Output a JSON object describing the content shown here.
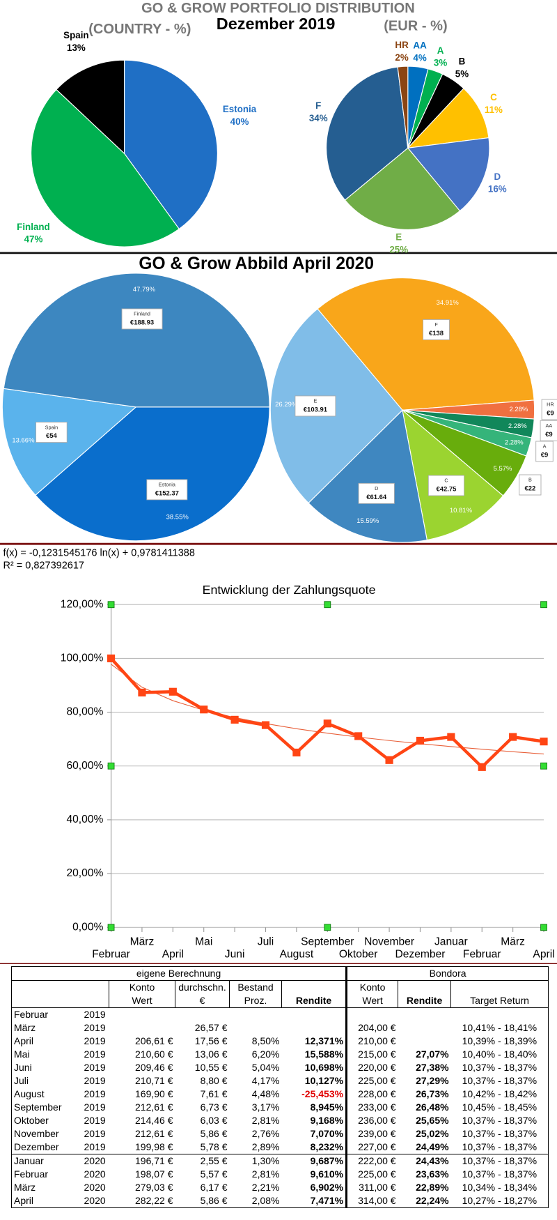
{
  "header": {
    "title": "GO & GROW PORTFOLIO DISTRIBUTION",
    "subtitle": "Dezember 2019",
    "section_title": "GO & Grow Abbild April 2020"
  },
  "chart_data": [
    {
      "type": "pie",
      "title": "(COUNTRY - %)",
      "categories": [
        "Estonia",
        "Finland",
        "Spain"
      ],
      "values": [
        40,
        47,
        13
      ],
      "value_labels": [
        "40%",
        "47%",
        "13%"
      ],
      "colors": [
        "#1f6fc5",
        "#00b050",
        "#000000"
      ]
    },
    {
      "type": "pie",
      "title": "(EUR - %)",
      "categories": [
        "AA",
        "A",
        "B",
        "C",
        "D",
        "E",
        "F",
        "HR"
      ],
      "values": [
        4,
        3,
        5,
        11,
        16,
        25,
        34,
        2
      ],
      "value_labels": [
        "4%",
        "3%",
        "5%",
        "11%",
        "16%",
        "25%",
        "34%",
        "2%"
      ],
      "colors": [
        "#0070c0",
        "#00b050",
        "#000000",
        "#ffc000",
        "#4472c4",
        "#70ad47",
        "#255e91",
        "#8b4513"
      ]
    },
    {
      "type": "pie",
      "categories": [
        "Estonia",
        "Spain",
        "Finland"
      ],
      "values": [
        38.55,
        13.66,
        47.79
      ],
      "value_labels": [
        "38.55%",
        "13.66%",
        "47.79%"
      ],
      "amounts": [
        152.37,
        54,
        188.93
      ],
      "amount_labels": [
        "€152.37",
        "€54",
        "€188.93"
      ],
      "colors": [
        "#0a6ecc",
        "#5ab3ec",
        "#3d87c0"
      ]
    },
    {
      "type": "pie",
      "categories": [
        "F",
        "HR",
        "AA",
        "A",
        "B",
        "C",
        "D",
        "E"
      ],
      "values": [
        34.91,
        2.28,
        2.28,
        2.28,
        5.57,
        10.81,
        15.59,
        26.29
      ],
      "value_labels": [
        "34.91%",
        "2.28%",
        "2.28%",
        "2.28%",
        "5.57%",
        "10.81%",
        "15.59%",
        "26.29%"
      ],
      "amounts": [
        138,
        9,
        9,
        9,
        22,
        42.75,
        61.64,
        103.91
      ],
      "amount_labels": [
        "€138",
        "€9",
        "€9",
        "€9",
        "€22",
        "€42.75",
        "€61.64",
        "€103.91"
      ],
      "colors": [
        "#f9a61a",
        "#f07040",
        "#11875a",
        "#35b47a",
        "#68ad0c",
        "#9bd430",
        "#3f87c0",
        "#80bde8"
      ]
    },
    {
      "type": "line",
      "title": "Entwicklung der Zahlungsquote",
      "annotations": [
        "f(x) = -0,1231545176 ln(x) + 0,9781411388",
        "R² = 0,827392617"
      ],
      "categories": [
        "Februar",
        "März",
        "April",
        "Mai",
        "Juni",
        "Juli",
        "August",
        "September",
        "Oktober",
        "November",
        "Dezember",
        "Januar",
        "Februar",
        "März",
        "April"
      ],
      "values": [
        100,
        87.3,
        87.6,
        81,
        77.2,
        75.2,
        65,
        75.8,
        71.1,
        62.2,
        69.4,
        70.8,
        59.6,
        70.8,
        69.1
      ],
      "color": "#ff4514",
      "trendline": {
        "values": [
          97.81,
          89.28,
          84.28,
          80.74,
          77.99,
          75.75,
          73.85,
          72.2,
          70.75,
          69.46,
          68.28,
          67.21,
          66.23,
          65.31,
          64.46
        ],
        "color": "#e8603a"
      },
      "ylim": [
        0,
        120
      ],
      "yticks": [
        {
          "value": 0,
          "label": "0,00%"
        },
        {
          "value": 20,
          "label": "20,00%"
        },
        {
          "value": 40,
          "label": "40,00%"
        },
        {
          "value": 60,
          "label": "60,00%"
        },
        {
          "value": 80,
          "label": "80,00%"
        },
        {
          "value": 100,
          "label": "100,00%"
        },
        {
          "value": 120,
          "label": "120,00%"
        }
      ],
      "grid": true
    }
  ],
  "table": {
    "groups": [
      "eigene Berechnung",
      "Bondora"
    ],
    "columns": [
      {
        "line1": "Konto",
        "line2": "Wert"
      },
      {
        "line1": "durchschn.",
        "line2": "€"
      },
      {
        "line1": "Bestand",
        "line2": "Proz."
      },
      {
        "line2": "Rendite"
      },
      {
        "line1": "Konto",
        "line2": "Wert"
      },
      {
        "line2": "Rendite"
      },
      {
        "line2": "Target Return"
      }
    ],
    "rows": [
      [
        "Februar",
        "2019",
        null,
        null,
        null,
        null,
        null,
        null,
        null
      ],
      [
        "März",
        "2019",
        null,
        "26,57 €",
        null,
        null,
        "204,00 €",
        null,
        "10,41% - 18,41%"
      ],
      [
        "April",
        "2019",
        "206,61 €",
        "17,56 €",
        "8,50%",
        "12,371%",
        "210,00 €",
        null,
        "10,39% - 18,39%"
      ],
      [
        "Mai",
        "2019",
        "210,60 €",
        "13,06 €",
        "6,20%",
        "15,588%",
        "215,00 €",
        "27,07%",
        "10,40% - 18,40%"
      ],
      [
        "Juni",
        "2019",
        "209,46 €",
        "10,55 €",
        "5,04%",
        "10,698%",
        "220,00 €",
        "27,38%",
        "10,37% - 18,37%"
      ],
      [
        "Juli",
        "2019",
        "210,71 €",
        "8,80 €",
        "4,17%",
        "10,127%",
        "225,00 €",
        "27,29%",
        "10,37% - 18,37%"
      ],
      [
        "August",
        "2019",
        "169,90 €",
        "7,61 €",
        "4,48%",
        "-25,453%",
        "228,00 €",
        "26,73%",
        "10,42% - 18,42%"
      ],
      [
        "September",
        "2019",
        "212,61 €",
        "6,73 €",
        "3,17%",
        "8,945%",
        "233,00 €",
        "26,48%",
        "10,45% - 18,45%"
      ],
      [
        "Oktober",
        "2019",
        "214,46 €",
        "6,03 €",
        "2,81%",
        "9,168%",
        "236,00 €",
        "25,65%",
        "10,37% - 18,37%"
      ],
      [
        "November",
        "2019",
        "212,61 €",
        "5,86 €",
        "2,76%",
        "7,070%",
        "239,00 €",
        "25,02%",
        "10,37% - 18,37%"
      ],
      [
        "Dezember",
        "2019",
        "199,98 €",
        "5,78 €",
        "2,89%",
        "8,232%",
        "227,00 €",
        "24,49%",
        "10,37% - 18,37%"
      ],
      [
        "Januar",
        "2020",
        "196,71 €",
        "2,55 €",
        "1,30%",
        "9,687%",
        "222,00 €",
        "24,43%",
        "10,37% - 18,37%"
      ],
      [
        "Februar",
        "2020",
        "198,07 €",
        "5,57 €",
        "2,81%",
        "9,610%",
        "225,00 €",
        "23,63%",
        "10,37% - 18,37%"
      ],
      [
        "März",
        "2020",
        "279,03 €",
        "6,17 €",
        "2,21%",
        "6,902%",
        "311,00 €",
        "22,89%",
        "10,34% - 18,34%"
      ],
      [
        "April",
        "2020",
        "282,22 €",
        "5,86 €",
        "2,08%",
        "7,471%",
        "314,00 €",
        "22,24%",
        "10,27% - 18,27%"
      ]
    ]
  }
}
